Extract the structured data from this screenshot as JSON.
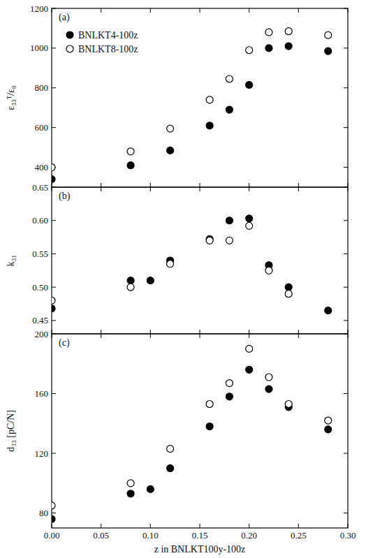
{
  "chart_data": [
    {
      "type": "scatter",
      "title": "(a)",
      "y_label": "ε₃₃ᵀ/ε₀",
      "x": [
        0,
        0.08,
        0.1,
        0.12,
        0.16,
        0.18,
        0.2,
        0.22,
        0.24,
        0.28
      ],
      "xlim": [
        0,
        0.3
      ],
      "xticks": [
        0,
        0.05,
        0.1,
        0.15,
        0.2,
        0.25,
        0.3
      ],
      "ylim": [
        300,
        1200
      ],
      "yticks": [
        400,
        600,
        800,
        1000,
        1200
      ],
      "tick_labels": "y",
      "legend": "upper left",
      "series": [
        {
          "name": "BNLKT4-100z",
          "color": "#000000",
          "marker": "circle",
          "values": [
            340,
            410,
            null,
            485,
            610,
            690,
            815,
            1000,
            1010,
            985
          ]
        },
        {
          "name": "BNLKT8-100z",
          "color": "#000000",
          "marker": "circle-open",
          "values": [
            400,
            480,
            null,
            595,
            740,
            845,
            990,
            1080,
            1085,
            1065
          ]
        }
      ]
    },
    {
      "type": "scatter",
      "title": "(b)",
      "y_label": "k₃₁",
      "x": [
        0,
        0.08,
        0.1,
        0.12,
        0.16,
        0.18,
        0.2,
        0.22,
        0.24,
        0.28
      ],
      "xlim": [
        0,
        0.3
      ],
      "xticks": [
        0,
        0.05,
        0.1,
        0.15,
        0.2,
        0.25,
        0.3
      ],
      "ylim": [
        0.43,
        0.65
      ],
      "yticks": [
        0.45,
        {
          "value": 0.5,
          "label": "0.50"
        },
        0.55,
        {
          "value": 0.6,
          "label": "0.60"
        },
        0.65
      ],
      "tick_labels": "y",
      "series": [
        {
          "color": "#000000",
          "marker": "circle",
          "values": [
            0.468,
            0.51,
            0.51,
            0.54,
            0.572,
            0.6,
            0.603,
            0.533,
            0.5,
            0.465
          ]
        },
        {
          "color": "#000000",
          "marker": "circle-open",
          "values": [
            0.48,
            0.5,
            null,
            0.535,
            0.57,
            0.57,
            0.592,
            0.525,
            0.49,
            null
          ]
        }
      ]
    },
    {
      "type": "scatter",
      "title": "(c)",
      "y_label": "d₃₃ [pC/N]",
      "x_label": "z in BNLKT100y-100z",
      "x": [
        0,
        0.08,
        0.1,
        0.12,
        0.16,
        0.18,
        0.2,
        0.22,
        0.24,
        0.28
      ],
      "xlim": [
        0,
        0.3
      ],
      "xticks": [
        {
          "value": 0,
          "label": "0.00"
        },
        0.05,
        {
          "value": 0.1,
          "label": "0.10"
        },
        0.15,
        {
          "value": 0.2,
          "label": "0.20"
        },
        0.25,
        {
          "value": 0.3,
          "label": "0.30"
        }
      ],
      "ylim": [
        70,
        200
      ],
      "yticks": [
        80,
        120,
        160,
        200
      ],
      "series": [
        {
          "color": "#000000",
          "marker": "circle",
          "values": [
            76,
            93,
            96,
            110,
            138,
            158,
            176,
            163,
            151,
            136
          ]
        },
        {
          "color": "#000000",
          "marker": "circle-open",
          "values": [
            85,
            100,
            null,
            123,
            153,
            167,
            190,
            171,
            153,
            142
          ]
        }
      ]
    }
  ]
}
